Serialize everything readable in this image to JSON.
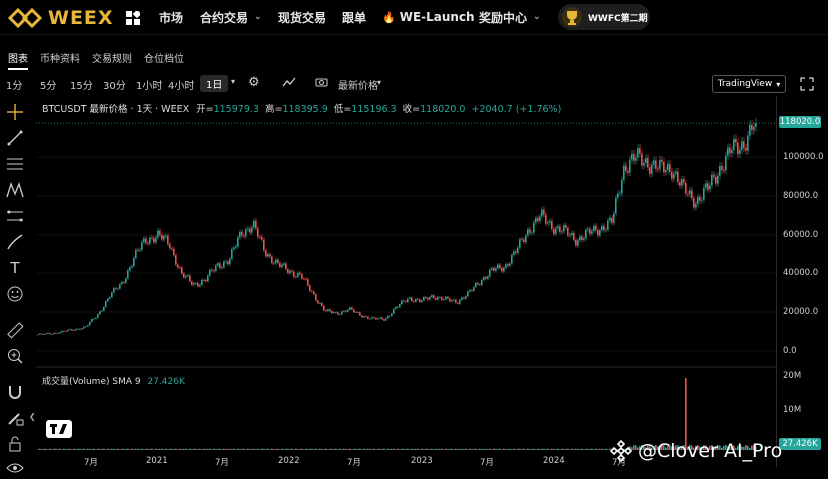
{
  "brand": {
    "name": "WEEX",
    "color": "#e8b73a"
  },
  "nav": {
    "items": [
      {
        "label": "市场",
        "caret": false
      },
      {
        "label": "合约交易",
        "caret": true
      },
      {
        "label": "现货交易",
        "caret": false
      },
      {
        "label": "跟单",
        "caret": false
      },
      {
        "label": "WE-Launch",
        "caret": false,
        "icon": "flame-icon"
      },
      {
        "label": "奖励中心",
        "caret": true
      }
    ],
    "badge": "WWFC第二期"
  },
  "tabs": [
    "图表",
    "币种资料",
    "交易规则",
    "仓位档位"
  ],
  "toolbar": {
    "timeframes": [
      "1分",
      "5分",
      "15分",
      "30分",
      "1小时",
      "4小时",
      "1日"
    ],
    "selected": "1日",
    "price_type": "最新价格",
    "view_mode": "TradingView"
  },
  "legend": {
    "symbol": "BTCUSDT 最新价格 · 1天 · WEEX",
    "open_label": "开=",
    "open": "115979.3",
    "high_label": "高=",
    "high": "118395.9",
    "low_label": "低=",
    "low": "115196.3",
    "close_label": "收=",
    "close": "118020.0",
    "change": "+2040.7 (+1.76%)"
  },
  "volume_legend": {
    "label": "成交量(Volume) SMA 9",
    "value": "27.426K"
  },
  "price_tag": "118020.0",
  "vol_tag": "27.426K",
  "y_axis": [
    "100000.0",
    "80000.0",
    "60000.0",
    "40000.0",
    "20000.0",
    "0.0"
  ],
  "vol_axis": [
    "20M",
    "10M"
  ],
  "x_axis": [
    "7月",
    "2021",
    "7月",
    "2022",
    "7月",
    "2023",
    "7月",
    "2024",
    "7月"
  ],
  "watermark": "@Clover AI_Pro",
  "colors": {
    "up": "#26a69a",
    "down": "#ef5350",
    "accent": "#e8b73a"
  },
  "chart_data": {
    "type": "line",
    "series": [
      {
        "values": [
          9000,
          9400,
          10500,
          11500,
          13000,
          19000,
          29000,
          35000,
          48000,
          58000,
          60000,
          56000,
          40000,
          35000,
          37000,
          45000,
          47000,
          62000,
          65000,
          52000,
          45000,
          42000,
          39000,
          30000,
          21000,
          20000,
          22000,
          19000,
          17000,
          17000,
          23000,
          28000,
          26000,
          29000,
          27000,
          26000,
          30000,
          37000,
          42000,
          44000,
          52000,
          63000,
          70000,
          65000,
          62000,
          58000,
          61000,
          64000,
          67000,
          96000,
          100000,
          98000,
          94000,
          95000,
          83000,
          78000,
          84000,
          95000,
          104000,
          108000,
          118020
        ]
      }
    ],
    "ylim": [
      0,
      118020
    ]
  }
}
